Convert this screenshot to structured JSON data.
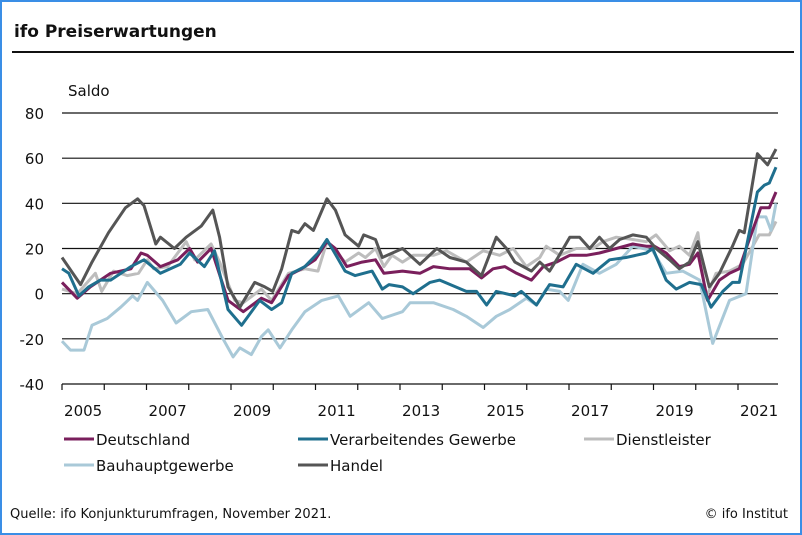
{
  "title": "ifo Preiserwartungen",
  "source": "Quelle: ifo Konjunkturumfragen, November 2021.",
  "copyright": "© ifo Institut",
  "chart_data": {
    "type": "line",
    "title": "ifo Preiserwartungen",
    "ylabel": "Saldo",
    "ylim": [
      -40,
      80
    ],
    "yticks": [
      80,
      60,
      40,
      20,
      0,
      -20,
      -40
    ],
    "xlim": [
      2005,
      2021.9
    ],
    "xtick_labels": [
      "2005",
      "2007",
      "2009",
      "2011",
      "2013",
      "2015",
      "2017",
      "2019",
      "2021"
    ],
    "grid": "horizontal",
    "legend": "bottom",
    "series": [
      {
        "name": "Deutschland",
        "color": "#7a1f5c",
        "points": [
          [
            2005,
            5
          ],
          [
            2005.36,
            -2
          ],
          [
            2005.67,
            3
          ],
          [
            2006.15,
            9
          ],
          [
            2006.63,
            11
          ],
          [
            2006.87,
            18
          ],
          [
            2007.02,
            17
          ],
          [
            2007.33,
            12
          ],
          [
            2007.74,
            15
          ],
          [
            2008.02,
            20
          ],
          [
            2008.21,
            14
          ],
          [
            2008.53,
            20
          ],
          [
            2008.93,
            -3
          ],
          [
            2009.29,
            -8
          ],
          [
            2009.72,
            -2
          ],
          [
            2009.96,
            -4
          ],
          [
            2010.36,
            8
          ],
          [
            2010.67,
            11
          ],
          [
            2010.99,
            15
          ],
          [
            2011.27,
            23
          ],
          [
            2011.47,
            20
          ],
          [
            2011.74,
            12
          ],
          [
            2012.1,
            14
          ],
          [
            2012.42,
            15
          ],
          [
            2012.62,
            9
          ],
          [
            2013.06,
            10
          ],
          [
            2013.47,
            9
          ],
          [
            2013.79,
            12
          ],
          [
            2014.18,
            11
          ],
          [
            2014.65,
            11
          ],
          [
            2014.93,
            7
          ],
          [
            2015.2,
            11
          ],
          [
            2015.48,
            12
          ],
          [
            2015.76,
            9
          ],
          [
            2016.11,
            6
          ],
          [
            2016.39,
            12
          ],
          [
            2016.7,
            14
          ],
          [
            2017.02,
            17
          ],
          [
            2017.41,
            17
          ],
          [
            2017.72,
            18
          ],
          [
            2018.12,
            20
          ],
          [
            2018.51,
            22
          ],
          [
            2018.83,
            21
          ],
          [
            2019.02,
            21
          ],
          [
            2019.3,
            18
          ],
          [
            2019.61,
            12
          ],
          [
            2019.85,
            13
          ],
          [
            2020.05,
            18
          ],
          [
            2020.28,
            -3
          ],
          [
            2020.56,
            6
          ],
          [
            2020.8,
            9
          ],
          [
            2021.03,
            11
          ],
          [
            2021.23,
            22
          ],
          [
            2021.54,
            38
          ],
          [
            2021.74,
            38
          ],
          [
            2021.9,
            45
          ]
        ]
      },
      {
        "name": "Verarbeitendes Gewerbe",
        "color": "#1f6f8e",
        "points": [
          [
            2005,
            11
          ],
          [
            2005.16,
            9
          ],
          [
            2005.4,
            -1
          ],
          [
            2005.63,
            3
          ],
          [
            2005.91,
            6
          ],
          [
            2006.15,
            6
          ],
          [
            2006.63,
            12
          ],
          [
            2006.94,
            15
          ],
          [
            2007.33,
            9
          ],
          [
            2007.8,
            13
          ],
          [
            2008.02,
            18
          ],
          [
            2008.37,
            12
          ],
          [
            2008.61,
            19
          ],
          [
            2008.93,
            -7
          ],
          [
            2009.25,
            -14
          ],
          [
            2009.68,
            -3
          ],
          [
            2009.96,
            -7
          ],
          [
            2010.2,
            -4
          ],
          [
            2010.44,
            9
          ],
          [
            2010.75,
            12
          ],
          [
            2011.06,
            18
          ],
          [
            2011.27,
            24
          ],
          [
            2011.7,
            10
          ],
          [
            2011.94,
            8
          ],
          [
            2012.34,
            10
          ],
          [
            2012.58,
            2
          ],
          [
            2012.74,
            4
          ],
          [
            2013.06,
            3
          ],
          [
            2013.31,
            0
          ],
          [
            2013.71,
            5
          ],
          [
            2013.94,
            6
          ],
          [
            2014.57,
            1
          ],
          [
            2014.81,
            1
          ],
          [
            2015.05,
            -5
          ],
          [
            2015.28,
            1
          ],
          [
            2015.72,
            -1
          ],
          [
            2015.87,
            1
          ],
          [
            2016.23,
            -5
          ],
          [
            2016.54,
            4
          ],
          [
            2016.86,
            3
          ],
          [
            2017.17,
            13
          ],
          [
            2017.57,
            9
          ],
          [
            2017.96,
            15
          ],
          [
            2018.35,
            16
          ],
          [
            2018.83,
            18
          ],
          [
            2018.98,
            20
          ],
          [
            2019.3,
            6
          ],
          [
            2019.54,
            2
          ],
          [
            2019.85,
            5
          ],
          [
            2020.13,
            4
          ],
          [
            2020.36,
            -6
          ],
          [
            2020.64,
            1
          ],
          [
            2020.87,
            5
          ],
          [
            2021.03,
            5
          ],
          [
            2021.46,
            45
          ],
          [
            2021.62,
            48
          ],
          [
            2021.74,
            49
          ],
          [
            2021.9,
            56
          ]
        ]
      },
      {
        "name": "Dienstleister",
        "color": "#bdbdbd",
        "points": [
          [
            2005,
            2
          ],
          [
            2005.36,
            0
          ],
          [
            2005.79,
            9
          ],
          [
            2005.94,
            1
          ],
          [
            2006.22,
            10
          ],
          [
            2006.54,
            8
          ],
          [
            2006.81,
            9
          ],
          [
            2007.02,
            15
          ],
          [
            2007.17,
            11
          ],
          [
            2007.5,
            12
          ],
          [
            2007.94,
            23
          ],
          [
            2008.14,
            15
          ],
          [
            2008.53,
            22
          ],
          [
            2008.73,
            14
          ],
          [
            2009.09,
            -3
          ],
          [
            2009.29,
            -4
          ],
          [
            2009.72,
            2
          ],
          [
            2009.96,
            -3
          ],
          [
            2010.36,
            9
          ],
          [
            2010.75,
            11
          ],
          [
            2011.06,
            10
          ],
          [
            2011.27,
            23
          ],
          [
            2011.7,
            14
          ],
          [
            2012.02,
            18
          ],
          [
            2012.18,
            16
          ],
          [
            2012.42,
            20
          ],
          [
            2012.62,
            12
          ],
          [
            2012.81,
            17
          ],
          [
            2013.06,
            14
          ],
          [
            2013.31,
            17
          ],
          [
            2013.79,
            17
          ],
          [
            2014.1,
            19
          ],
          [
            2014.57,
            14
          ],
          [
            2014.97,
            19
          ],
          [
            2015.36,
            17
          ],
          [
            2015.68,
            20
          ],
          [
            2015.99,
            12
          ],
          [
            2016.31,
            16
          ],
          [
            2016.46,
            21
          ],
          [
            2016.78,
            17
          ],
          [
            2017.17,
            20
          ],
          [
            2017.57,
            20
          ],
          [
            2017.8,
            23
          ],
          [
            2018.12,
            25
          ],
          [
            2018.51,
            24
          ],
          [
            2018.83,
            23
          ],
          [
            2019.06,
            26
          ],
          [
            2019.38,
            19
          ],
          [
            2019.61,
            21
          ],
          [
            2019.85,
            17
          ],
          [
            2020.05,
            27
          ],
          [
            2020.24,
            -2
          ],
          [
            2020.48,
            9
          ],
          [
            2020.8,
            10
          ],
          [
            2021.11,
            13
          ],
          [
            2021.5,
            26
          ],
          [
            2021.74,
            26
          ],
          [
            2021.9,
            32
          ]
        ]
      },
      {
        "name": "Bauhauptgewerbe",
        "color": "#a9c9d8",
        "points": [
          [
            2005,
            -21
          ],
          [
            2005.2,
            -25
          ],
          [
            2005.52,
            -25
          ],
          [
            2005.71,
            -14
          ],
          [
            2006.07,
            -11
          ],
          [
            2006.39,
            -6
          ],
          [
            2006.67,
            -1
          ],
          [
            2006.79,
            -3
          ],
          [
            2007.02,
            5
          ],
          [
            2007.38,
            -3
          ],
          [
            2007.7,
            -13
          ],
          [
            2008.06,
            -8
          ],
          [
            2008.45,
            -7
          ],
          [
            2008.81,
            -20
          ],
          [
            2009.05,
            -28
          ],
          [
            2009.21,
            -24
          ],
          [
            2009.48,
            -27
          ],
          [
            2009.72,
            -19
          ],
          [
            2009.88,
            -16
          ],
          [
            2010.16,
            -24
          ],
          [
            2010.44,
            -16
          ],
          [
            2010.75,
            -8
          ],
          [
            2011.15,
            -3
          ],
          [
            2011.54,
            -1
          ],
          [
            2011.82,
            -10
          ],
          [
            2012.26,
            -4
          ],
          [
            2012.58,
            -11
          ],
          [
            2013.06,
            -8
          ],
          [
            2013.24,
            -4
          ],
          [
            2013.79,
            -4
          ],
          [
            2014.26,
            -7
          ],
          [
            2014.57,
            -10
          ],
          [
            2014.97,
            -15
          ],
          [
            2015.28,
            -10
          ],
          [
            2015.6,
            -7
          ],
          [
            2015.99,
            -2
          ],
          [
            2016.23,
            -5
          ],
          [
            2016.46,
            2
          ],
          [
            2016.78,
            1
          ],
          [
            2016.98,
            -3
          ],
          [
            2017.33,
            13
          ],
          [
            2017.72,
            9
          ],
          [
            2018.12,
            13
          ],
          [
            2018.51,
            21
          ],
          [
            2018.98,
            19
          ],
          [
            2019.3,
            9
          ],
          [
            2019.69,
            10
          ],
          [
            2020.09,
            6
          ],
          [
            2020.4,
            -22
          ],
          [
            2020.8,
            -3
          ],
          [
            2021.19,
            0
          ],
          [
            2021.46,
            34
          ],
          [
            2021.66,
            34
          ],
          [
            2021.78,
            28
          ],
          [
            2021.9,
            40
          ]
        ]
      },
      {
        "name": "Handel",
        "color": "#555555",
        "points": [
          [
            2005,
            16
          ],
          [
            2005.44,
            4
          ],
          [
            2005.71,
            14
          ],
          [
            2006.1,
            27
          ],
          [
            2006.5,
            38
          ],
          [
            2006.79,
            42
          ],
          [
            2006.94,
            39
          ],
          [
            2007.22,
            22
          ],
          [
            2007.33,
            25
          ],
          [
            2007.66,
            20
          ],
          [
            2007.94,
            25
          ],
          [
            2008.3,
            30
          ],
          [
            2008.57,
            37
          ],
          [
            2008.73,
            25
          ],
          [
            2008.93,
            3
          ],
          [
            2009.21,
            -6
          ],
          [
            2009.56,
            5
          ],
          [
            2009.8,
            3
          ],
          [
            2009.99,
            1
          ],
          [
            2010.2,
            11
          ],
          [
            2010.44,
            28
          ],
          [
            2010.6,
            27
          ],
          [
            2010.75,
            31
          ],
          [
            2010.95,
            28
          ],
          [
            2011.27,
            42
          ],
          [
            2011.47,
            37
          ],
          [
            2011.7,
            26
          ],
          [
            2012.02,
            21
          ],
          [
            2012.14,
            26
          ],
          [
            2012.42,
            24
          ],
          [
            2012.58,
            16
          ],
          [
            2013.06,
            20
          ],
          [
            2013.47,
            13
          ],
          [
            2013.87,
            20
          ],
          [
            2014.18,
            16
          ],
          [
            2014.57,
            14
          ],
          [
            2014.93,
            8
          ],
          [
            2015.28,
            25
          ],
          [
            2015.52,
            20
          ],
          [
            2015.72,
            14
          ],
          [
            2016.11,
            10
          ],
          [
            2016.31,
            14
          ],
          [
            2016.54,
            10
          ],
          [
            2016.74,
            16
          ],
          [
            2017.02,
            25
          ],
          [
            2017.25,
            25
          ],
          [
            2017.49,
            20
          ],
          [
            2017.72,
            25
          ],
          [
            2017.96,
            20
          ],
          [
            2018.2,
            24
          ],
          [
            2018.51,
            26
          ],
          [
            2018.83,
            25
          ],
          [
            2019.06,
            20
          ],
          [
            2019.38,
            15
          ],
          [
            2019.61,
            11
          ],
          [
            2019.85,
            14
          ],
          [
            2020.05,
            23
          ],
          [
            2020.32,
            3
          ],
          [
            2020.56,
            9
          ],
          [
            2020.87,
            21
          ],
          [
            2021.03,
            28
          ],
          [
            2021.15,
            27
          ],
          [
            2021.46,
            62
          ],
          [
            2021.7,
            57
          ],
          [
            2021.9,
            64
          ]
        ]
      }
    ]
  }
}
